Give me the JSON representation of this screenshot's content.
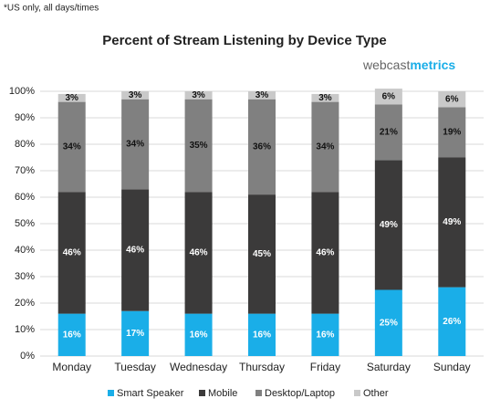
{
  "chart_data": {
    "type": "stacked_bar",
    "note": "*US only, all days/times",
    "title": "Percent of Stream Listening by Device Type",
    "logo": [
      "webcast",
      "metrics"
    ],
    "categories": [
      "Monday",
      "Tuesday",
      "Wednesday",
      "Thursday",
      "Friday",
      "Saturday",
      "Sunday"
    ],
    "series": [
      {
        "name": "Smart Speaker",
        "color": "#1aaee8",
        "label_color": "#ffffff",
        "values": [
          16,
          17,
          16,
          16,
          16,
          25,
          26
        ],
        "value_labels": [
          "16%",
          "17%",
          "16%",
          "16%",
          "16%",
          "25%",
          "26%"
        ]
      },
      {
        "name": "Mobile",
        "color": "#3b3a3a",
        "label_color": "#ffffff",
        "values": [
          46,
          46,
          46,
          45,
          46,
          49,
          49
        ],
        "value_labels": [
          "46%",
          "46%",
          "46%",
          "45%",
          "46%",
          "49%",
          "49%"
        ]
      },
      {
        "name": "Desktop/Laptop",
        "color": "#808080",
        "label_color": "#111111",
        "values": [
          34,
          34,
          35,
          36,
          34,
          21,
          19
        ],
        "value_labels": [
          "34%",
          "34%",
          "35%",
          "36%",
          "34%",
          "21%",
          "19%"
        ]
      },
      {
        "name": "Other",
        "color": "#c9c9c9",
        "label_color": "#111111",
        "values": [
          3,
          3,
          3,
          3,
          3,
          6,
          6
        ],
        "value_labels": [
          "3%",
          "3%",
          "3%",
          "3%",
          "3%",
          "6%",
          "6%"
        ]
      }
    ],
    "ylim": [
      0,
      100
    ],
    "yticks": [
      {
        "value": 0,
        "label": "0%"
      },
      {
        "value": 10,
        "label": "10%"
      },
      {
        "value": 20,
        "label": "20%"
      },
      {
        "value": 30,
        "label": "30%"
      },
      {
        "value": 40,
        "label": "40%"
      },
      {
        "value": 50,
        "label": "50%"
      },
      {
        "value": 60,
        "label": "60%"
      },
      {
        "value": 70,
        "label": "70%"
      },
      {
        "value": 80,
        "label": "80%"
      },
      {
        "value": 90,
        "label": "90%"
      },
      {
        "value": 100,
        "label": "100%"
      }
    ],
    "grid": true
  }
}
